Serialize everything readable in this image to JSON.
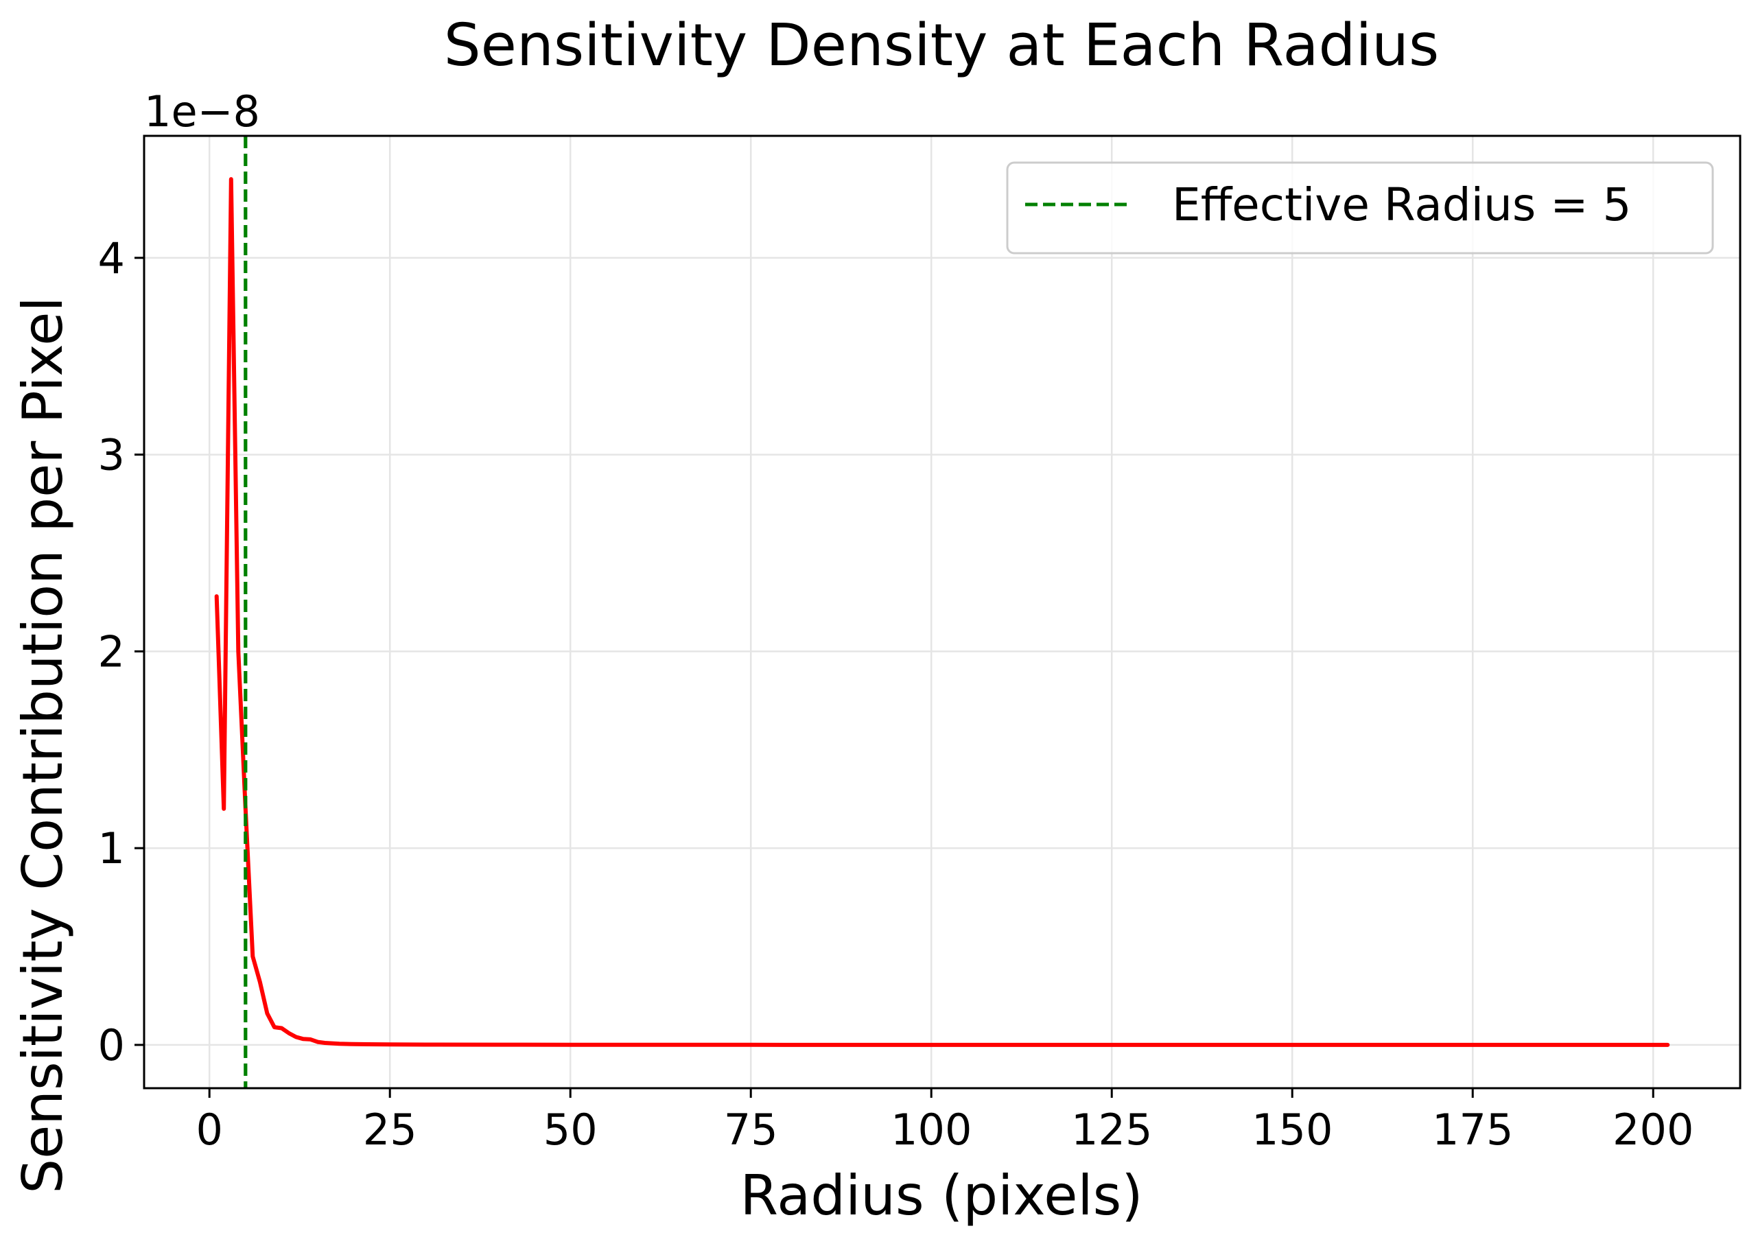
{
  "chart_data": {
    "type": "line",
    "title": "Sensitivity Density at Each Radius",
    "xlabel": "Radius (pixels)",
    "ylabel": "Sensitivity Contribution per Pixel",
    "y_offset_label": "1e−8",
    "y_scale_factor": 1e-08,
    "xlim": [
      -9.05,
      212.05
    ],
    "ylim": [
      -0.22,
      4.62
    ],
    "x_ticks": [
      0,
      25,
      50,
      75,
      100,
      125,
      150,
      175,
      200
    ],
    "x_tick_labels": [
      "0",
      "25",
      "50",
      "75",
      "100",
      "125",
      "150",
      "175",
      "200"
    ],
    "y_ticks": [
      0,
      1,
      2,
      3,
      4
    ],
    "y_tick_labels": [
      "0",
      "1",
      "2",
      "3",
      "4"
    ],
    "grid": true,
    "legend_position": "top-right",
    "series": [
      {
        "color": "#ff0000",
        "x": [
          1,
          2,
          3,
          4,
          5,
          6,
          7,
          8,
          9,
          10,
          11,
          12,
          13,
          14,
          15,
          16,
          17,
          18,
          20,
          22,
          25,
          30,
          40,
          50,
          75,
          100,
          125,
          150,
          175,
          200,
          202
        ],
        "y": [
          2.28,
          1.2,
          4.4,
          2.0,
          1.2,
          0.45,
          0.32,
          0.16,
          0.09,
          0.085,
          0.06,
          0.04,
          0.03,
          0.028,
          0.015,
          0.01,
          0.008,
          0.006,
          0.004,
          0.003,
          0.002,
          0.0015,
          0.001,
          0.0005,
          0.0003,
          0.0002,
          0.0002,
          0.0001,
          0.0001,
          0.0,
          0.0
        ]
      }
    ],
    "reference_lines": [
      {
        "orientation": "vertical",
        "x": 5,
        "color": "#008000",
        "style": "dashed",
        "label": "Effective Radius = 5"
      }
    ]
  }
}
